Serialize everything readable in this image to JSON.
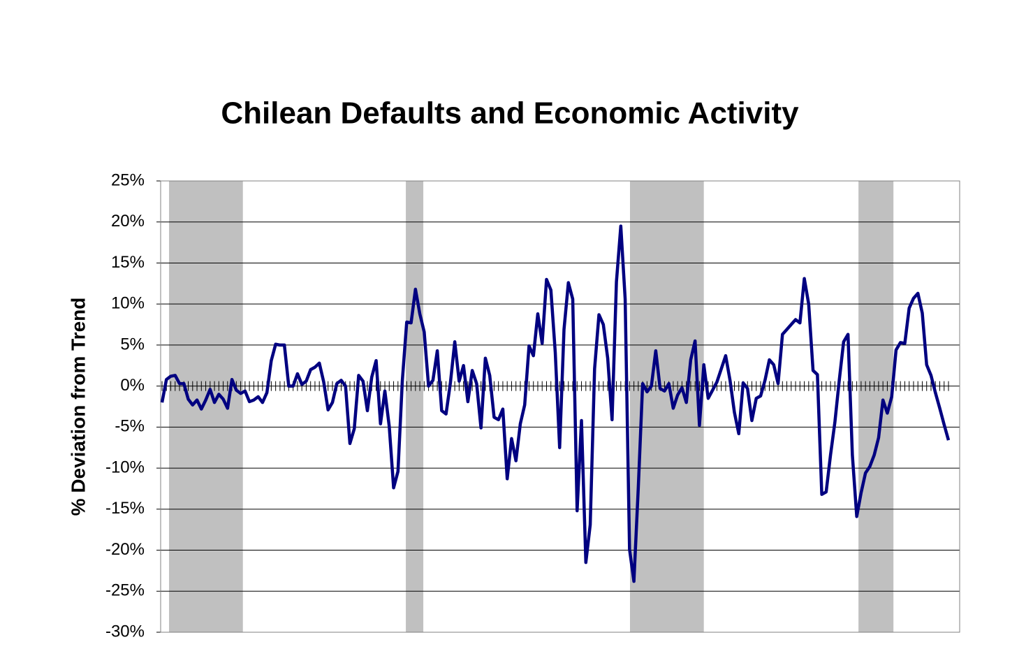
{
  "chart_data": {
    "type": "line",
    "title": "Chilean Defaults and Economic Activity",
    "y_label": "% Deviation from Trend",
    "categories": [
      null,
      null,
      null,
      null,
      null,
      null,
      null,
      null,
      null,
      null,
      null,
      null,
      null,
      null,
      null,
      null,
      null,
      null,
      null,
      null,
      null,
      null,
      null,
      null,
      null,
      null,
      null,
      null,
      null,
      null,
      null,
      null,
      null,
      null,
      null,
      null,
      null,
      null,
      null,
      null,
      null,
      null,
      null,
      null,
      null,
      null,
      null,
      null,
      null,
      null,
      null,
      null,
      null,
      null,
      null,
      null,
      null,
      null,
      null,
      null,
      null,
      null,
      null,
      null,
      null,
      null,
      null,
      null,
      null,
      null,
      null,
      null,
      null,
      null,
      null,
      null,
      null,
      null,
      null,
      null,
      null,
      null,
      null,
      null,
      null,
      null,
      null,
      null,
      null,
      null,
      null,
      null,
      null,
      null,
      null,
      null,
      null,
      null,
      null,
      null,
      null,
      null,
      null,
      null,
      null,
      null,
      null,
      null,
      null,
      null,
      null,
      null,
      null,
      null,
      null,
      null,
      null,
      null,
      null,
      null,
      null,
      null,
      null,
      null,
      null,
      null,
      null,
      null,
      null,
      null,
      null,
      null,
      null,
      null,
      null,
      null,
      null,
      null,
      null,
      null,
      null,
      null,
      null,
      null,
      null,
      null,
      null,
      null,
      null,
      null,
      null,
      null,
      null,
      null,
      null,
      null,
      null,
      null,
      null,
      null,
      null,
      null,
      null,
      null,
      null,
      null,
      null,
      null,
      null,
      null,
      null,
      null,
      null,
      null,
      null,
      null,
      null,
      null,
      null,
      null,
      null
    ],
    "series": [
      {
        "color": "#000080",
        "values": [
          -2,
          0.8,
          1.2,
          1.3,
          0.3,
          0.3,
          -1.6,
          -2.3,
          -1.7,
          -2.8,
          -1.7,
          -0.4,
          -2,
          -1,
          -1.6,
          -2.7,
          0.8,
          -0.5,
          -0.9,
          -0.6,
          -1.9,
          -1.7,
          -1.3,
          -2,
          -0.8,
          3.1,
          5.1,
          5,
          5,
          0,
          0,
          1.5,
          0.2,
          0.6,
          2,
          2.3,
          2.8,
          0.5,
          -2.9,
          -2,
          0.3,
          0.7,
          0,
          -7,
          -5.2,
          1.3,
          0.6,
          -3,
          1.1,
          3.1,
          -4.6,
          -0.6,
          -4.9,
          -12.4,
          -10.4,
          0.7,
          7.8,
          7.7,
          11.8,
          8.8,
          6.6,
          0,
          0.7,
          4.3,
          -3,
          -3.4,
          0.4,
          5.4,
          0.6,
          2.5,
          -1.9,
          1.9,
          0.3,
          -5.1,
          3.4,
          1.3,
          -3.8,
          -4.1,
          -2.8,
          -11.3,
          -6.4,
          -9.1,
          -4.6,
          -2.3,
          4.9,
          3.7,
          8.8,
          5.2,
          13,
          11.7,
          4.1,
          -7.5,
          6.9,
          12.6,
          10.6,
          -15.2,
          -4.2,
          -21.5,
          -16.9,
          2.1,
          8.7,
          7.5,
          3.4,
          -4.1,
          12.7,
          19.5,
          10.6,
          -19.9,
          -23.8,
          -12.4,
          0.3,
          -0.7,
          0,
          4.3,
          -0.3,
          -0.6,
          0.3,
          -2.7,
          -1.1,
          -0.2,
          -2,
          3.2,
          5.5,
          -4.8,
          2.6,
          -1.5,
          -0.5,
          0.5,
          2.1,
          3.7,
          0.7,
          -3.2,
          -5.8,
          0.4,
          -0.3,
          -4.2,
          -1.5,
          -1.2,
          0.7,
          3.2,
          2.6,
          0.3,
          6.3,
          6.9,
          7.5,
          8.1,
          7.7,
          13.1,
          10,
          1.9,
          1.4,
          -13.2,
          -12.9,
          -8.4,
          -4.4,
          0.7,
          5.4,
          6.3,
          -8.4,
          -15.9,
          -13,
          -10.6,
          -9.8,
          -8.4,
          -6.3,
          -1.7,
          -3.3,
          -1.3,
          4.4,
          5.3,
          5.2,
          9.5,
          10.7,
          11.3,
          8.9,
          2.6,
          1.3,
          -0.8,
          -2.7,
          -4.7,
          -6.6
        ]
      }
    ],
    "shaded": [
      [
        1.6,
        18.5
      ],
      [
        55.8,
        59.8
      ],
      [
        107.1,
        124.0
      ],
      [
        159.4,
        167.4
      ]
    ],
    "shade_color": "#c0c0c0",
    "ylim": [
      -30,
      25
    ],
    "yticks": [
      {
        "value": -30,
        "label": "-30%"
      },
      {
        "value": -25,
        "label": "-25%"
      },
      {
        "value": -20,
        "label": "-20%"
      },
      {
        "value": -15,
        "label": "-15%"
      },
      {
        "value": -10,
        "label": "-10%"
      },
      {
        "value": -5,
        "label": "-5%"
      },
      {
        "value": 0,
        "label": "0%"
      },
      {
        "value": 5,
        "label": "5%"
      },
      {
        "value": 10,
        "label": "10%"
      },
      {
        "value": 15,
        "label": "15%"
      },
      {
        "value": 20,
        "label": "20%"
      },
      {
        "value": 25,
        "label": "25%"
      }
    ],
    "grid": true
  }
}
